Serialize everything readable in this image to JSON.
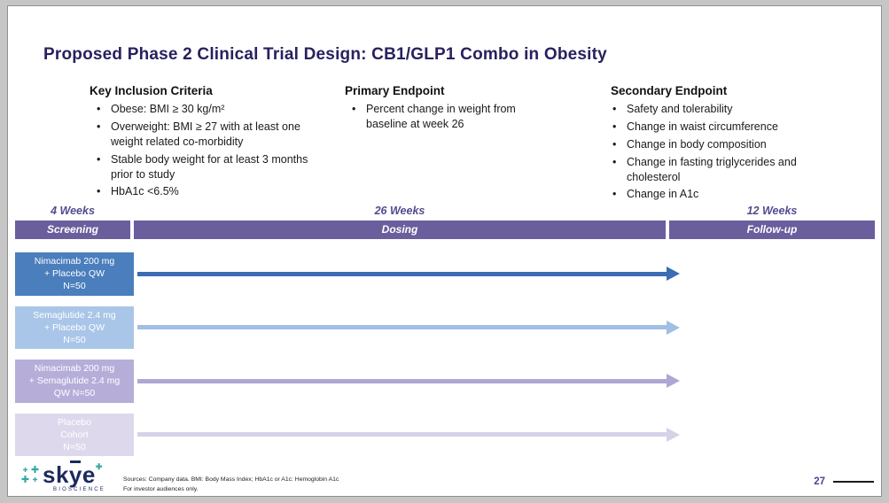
{
  "slide": {
    "title": "Proposed Phase 2 Clinical Trial Design: CB1/GLP1 Combo in Obesity",
    "columns": [
      {
        "heading": "Key Inclusion Criteria",
        "bullets": [
          "Obese: BMI ≥ 30 kg/m²",
          "Overweight: BMI ≥ 27 with at least one weight related co-morbidity",
          "Stable body weight for at least 3 months prior to study",
          "HbA1c <6.5%"
        ]
      },
      {
        "heading": "Primary Endpoint",
        "bullets": [
          "Percent change in weight from baseline at week 26"
        ]
      },
      {
        "heading": "Secondary Endpoint",
        "bullets": [
          "Safety and tolerability",
          "Change in waist circumference",
          "Change in body composition",
          "Change in fasting triglycerides and cholesterol",
          "Change in A1c"
        ]
      }
    ],
    "timeline": [
      {
        "duration": "4 Weeks",
        "label": "Screening"
      },
      {
        "duration": "26 Weeks",
        "label": "Dosing"
      },
      {
        "duration": "12 Weeks",
        "label": "Follow-up"
      }
    ],
    "arms": [
      {
        "lines": [
          "Nimacimab 200 mg",
          "+ Placebo QW",
          "N=50"
        ],
        "box_color": "#4a7ebd",
        "arrow_color": "#3b6cb4"
      },
      {
        "lines": [
          "Semaglutide 2.4 mg",
          "+ Placebo QW",
          "N=50"
        ],
        "box_color": "#a9c6e8",
        "arrow_color": "#9fbfe4"
      },
      {
        "lines": [
          "Nimacimab 200 mg",
          "+ Semaglutide 2.4 mg",
          "QW N=50"
        ],
        "box_color": "#b6aed9",
        "arrow_color": "#afa7d3"
      },
      {
        "lines": [
          "Placebo",
          "Cohort",
          "N=50"
        ],
        "box_color": "#ddd8ec",
        "arrow_color": "#d7d1e8"
      }
    ],
    "footer": {
      "logo_text_pre": "sk",
      "logo_text_macron": "y",
      "logo_text_post": "e",
      "logo_subtext": "BIOSCIENCE",
      "source_line1": "Sources: Company data. BMI: Body Mass Index; HbA1c or A1c: Hemoglobin A1c",
      "source_line2": "For investor audiences only.",
      "page_number": "27"
    },
    "colors": {
      "title_text": "#27215f",
      "timeline_bar": "#6a5e9d",
      "duration_text": "#534b90",
      "page_number": "#4a4494",
      "logo_navy": "#1b2a5e",
      "logo_teal": "#35a8a2"
    }
  }
}
